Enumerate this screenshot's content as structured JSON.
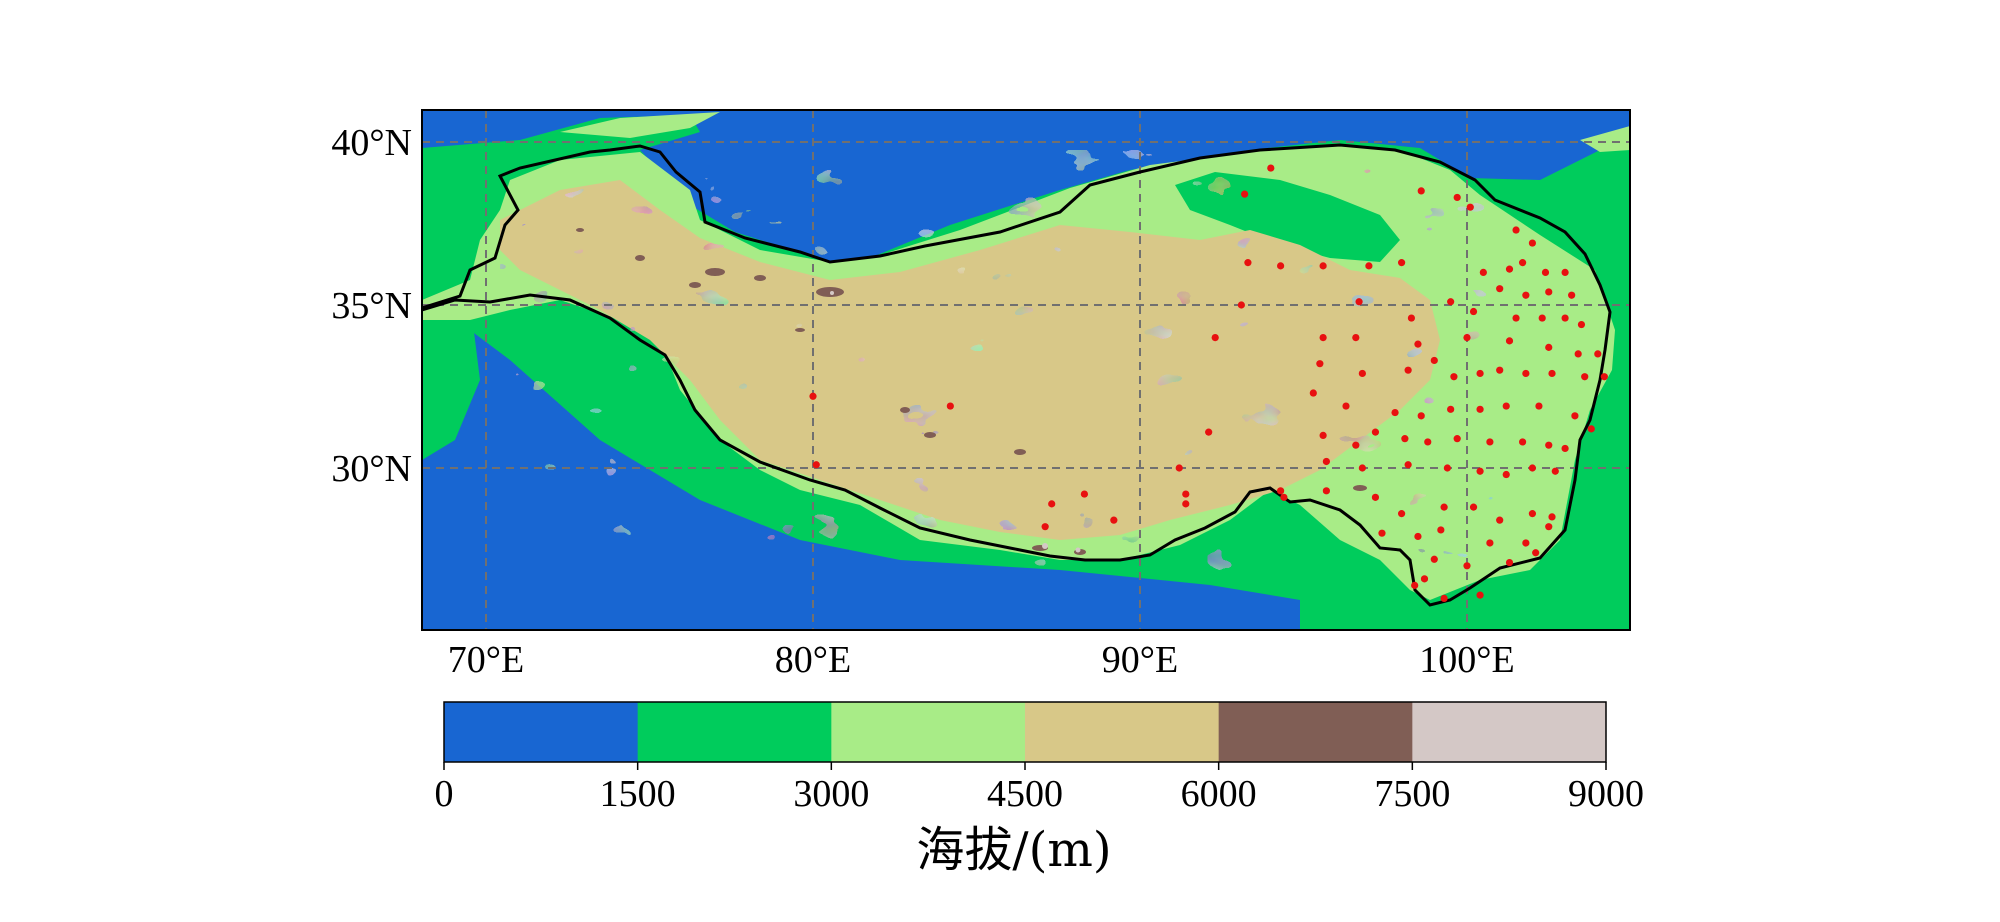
{
  "map": {
    "lon_range": [
      68,
      105
    ],
    "lat_range": [
      25,
      41
    ],
    "lon_ticks": [
      {
        "value": 70,
        "label": "70°E"
      },
      {
        "value": 80,
        "label": "80°E"
      },
      {
        "value": 90,
        "label": "90°E"
      },
      {
        "value": 100,
        "label": "100°E"
      }
    ],
    "lat_ticks": [
      {
        "value": 40,
        "label": "40°N"
      },
      {
        "value": 35,
        "label": "35°N"
      },
      {
        "value": 30,
        "label": "30°N"
      }
    ],
    "gridlines": "dashed",
    "region_outline": "Tibetan Plateau boundary",
    "stations": [
      [
        94.0,
        39.2
      ],
      [
        93.2,
        38.4
      ],
      [
        98.6,
        38.5
      ],
      [
        99.7,
        38.3
      ],
      [
        100.1,
        38.0
      ],
      [
        101.5,
        37.3
      ],
      [
        102.0,
        36.9
      ],
      [
        93.3,
        36.3
      ],
      [
        94.3,
        36.2
      ],
      [
        95.6,
        36.2
      ],
      [
        97.0,
        36.2
      ],
      [
        98.0,
        36.3
      ],
      [
        100.5,
        36.0
      ],
      [
        101.3,
        36.1
      ],
      [
        101.7,
        36.3
      ],
      [
        102.4,
        36.0
      ],
      [
        103.0,
        36.0
      ],
      [
        101.0,
        35.5
      ],
      [
        101.8,
        35.3
      ],
      [
        102.5,
        35.4
      ],
      [
        103.2,
        35.3
      ],
      [
        93.1,
        35.0
      ],
      [
        96.7,
        35.1
      ],
      [
        98.3,
        34.6
      ],
      [
        99.5,
        35.1
      ],
      [
        100.2,
        34.8
      ],
      [
        101.5,
        34.6
      ],
      [
        102.3,
        34.6
      ],
      [
        103.0,
        34.6
      ],
      [
        103.5,
        34.4
      ],
      [
        92.3,
        34.0
      ],
      [
        95.6,
        34.0
      ],
      [
        96.6,
        34.0
      ],
      [
        98.5,
        33.8
      ],
      [
        100.0,
        34.0
      ],
      [
        101.3,
        33.9
      ],
      [
        102.5,
        33.7
      ],
      [
        103.4,
        33.5
      ],
      [
        104.0,
        33.5
      ],
      [
        95.5,
        33.2
      ],
      [
        96.8,
        32.9
      ],
      [
        98.2,
        33.0
      ],
      [
        99.0,
        33.3
      ],
      [
        99.6,
        32.8
      ],
      [
        100.4,
        32.9
      ],
      [
        101.0,
        33.0
      ],
      [
        101.8,
        32.9
      ],
      [
        102.6,
        32.9
      ],
      [
        103.6,
        32.8
      ],
      [
        104.2,
        32.8
      ],
      [
        80.0,
        32.2
      ],
      [
        84.2,
        31.9
      ],
      [
        95.3,
        32.3
      ],
      [
        96.3,
        31.9
      ],
      [
        97.8,
        31.7
      ],
      [
        98.6,
        31.6
      ],
      [
        99.5,
        31.8
      ],
      [
        100.4,
        31.8
      ],
      [
        101.2,
        31.9
      ],
      [
        102.2,
        31.9
      ],
      [
        103.3,
        31.6
      ],
      [
        103.8,
        31.2
      ],
      [
        92.1,
        31.1
      ],
      [
        95.6,
        31.0
      ],
      [
        96.6,
        30.7
      ],
      [
        97.2,
        31.1
      ],
      [
        98.1,
        30.9
      ],
      [
        98.8,
        30.8
      ],
      [
        99.7,
        30.9
      ],
      [
        100.7,
        30.8
      ],
      [
        101.7,
        30.8
      ],
      [
        102.5,
        30.7
      ],
      [
        103.0,
        30.6
      ],
      [
        80.1,
        30.1
      ],
      [
        91.2,
        30.0
      ],
      [
        95.7,
        30.2
      ],
      [
        96.8,
        30.0
      ],
      [
        98.2,
        30.1
      ],
      [
        99.4,
        30.0
      ],
      [
        100.4,
        29.9
      ],
      [
        101.2,
        29.8
      ],
      [
        102.0,
        30.0
      ],
      [
        102.7,
        29.9
      ],
      [
        87.3,
        28.9
      ],
      [
        91.4,
        29.2
      ],
      [
        91.4,
        28.9
      ],
      [
        88.3,
        29.2
      ],
      [
        94.4,
        29.1
      ],
      [
        94.3,
        29.3
      ],
      [
        95.7,
        29.3
      ],
      [
        97.2,
        29.1
      ],
      [
        98.0,
        28.6
      ],
      [
        99.3,
        28.8
      ],
      [
        100.2,
        28.8
      ],
      [
        101.0,
        28.4
      ],
      [
        102.0,
        28.6
      ],
      [
        102.6,
        28.5
      ],
      [
        87.1,
        28.2
      ],
      [
        89.2,
        28.4
      ],
      [
        97.4,
        28.0
      ],
      [
        98.5,
        27.9
      ],
      [
        99.2,
        28.1
      ],
      [
        100.7,
        27.7
      ],
      [
        101.8,
        27.7
      ],
      [
        102.5,
        28.2
      ],
      [
        99.0,
        27.2
      ],
      [
        100.0,
        27.0
      ],
      [
        101.3,
        27.1
      ],
      [
        102.1,
        27.4
      ],
      [
        98.7,
        26.6
      ],
      [
        99.3,
        26.0
      ],
      [
        100.4,
        26.1
      ],
      [
        98.4,
        26.4
      ]
    ]
  },
  "colorbar": {
    "bins": [
      {
        "min": 0,
        "max": 1500,
        "color": "#1866d2"
      },
      {
        "min": 1500,
        "max": 3000,
        "color": "#00cc5c"
      },
      {
        "min": 3000,
        "max": 4500,
        "color": "#a8ec87"
      },
      {
        "min": 4500,
        "max": 6000,
        "color": "#d8c888"
      },
      {
        "min": 6000,
        "max": 7500,
        "color": "#805e55"
      },
      {
        "min": 7500,
        "max": 9000,
        "color": "#d4c8c6"
      }
    ],
    "tick_labels": [
      "0",
      "1500",
      "3000",
      "4500",
      "6000",
      "7500",
      "9000"
    ],
    "title": "海拔/(m)"
  },
  "colors": {
    "outline": "#000000",
    "gridline": "#707070",
    "station": "#e81010"
  }
}
